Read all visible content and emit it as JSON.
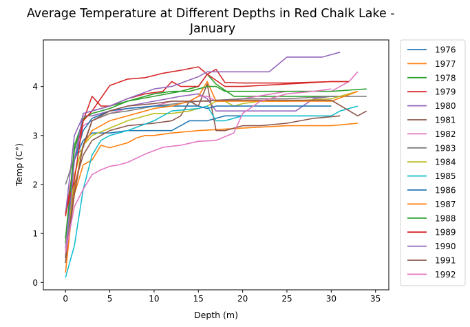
{
  "chart_data": {
    "type": "line",
    "title": "Average Temperature at Different Depths in Red Chalk Lake -\nJanuary",
    "xlabel": "Depth (m)",
    "ylabel": "Temp (C°)",
    "xlim": [
      -2.5,
      36.5
    ],
    "ylim": [
      -0.15,
      4.95
    ],
    "xticks": [
      0,
      5,
      10,
      15,
      20,
      25,
      30,
      35
    ],
    "yticks": [
      0,
      1,
      2,
      3,
      4
    ],
    "grid": false,
    "legend": "outside-right",
    "series": [
      {
        "name": "1976",
        "color": "#1f77b4",
        "x": [
          0,
          1,
          2,
          3,
          5,
          7,
          10,
          12,
          14,
          15,
          16,
          18,
          20,
          25,
          30
        ],
        "y": [
          0.7,
          2.5,
          2.9,
          3.05,
          3.05,
          3.1,
          3.1,
          3.1,
          3.3,
          3.3,
          3.3,
          3.4,
          3.4,
          3.4,
          3.4
        ]
      },
      {
        "name": "1977",
        "color": "#ff7f0e",
        "x": [
          0,
          1,
          2,
          3,
          4,
          5,
          6,
          7,
          8,
          9,
          10,
          12,
          15,
          20,
          25,
          30,
          33
        ],
        "y": [
          0.4,
          1.8,
          2.4,
          2.5,
          2.8,
          2.75,
          2.8,
          2.85,
          2.95,
          3.0,
          3.0,
          3.05,
          3.1,
          3.15,
          3.2,
          3.2,
          3.25
        ]
      },
      {
        "name": "1978",
        "color": "#2ca02c",
        "x": [
          0,
          1,
          2,
          3,
          5,
          7,
          10,
          13,
          15,
          16,
          17,
          19,
          22,
          25,
          28,
          31
        ],
        "y": [
          0.8,
          2.8,
          3.3,
          3.5,
          3.6,
          3.7,
          3.8,
          3.9,
          4.0,
          4.25,
          4.05,
          3.8,
          3.8,
          3.8,
          3.8,
          3.8
        ]
      },
      {
        "name": "1979",
        "color": "#d62728",
        "x": [
          0,
          1,
          2,
          3,
          4,
          5,
          7,
          9,
          11,
          12,
          13,
          15,
          16,
          18,
          20,
          25,
          30,
          32
        ],
        "y": [
          1.35,
          2.5,
          3.3,
          3.8,
          3.6,
          3.6,
          3.75,
          3.85,
          3.9,
          4.1,
          4.0,
          4.0,
          4.25,
          4.0,
          4.0,
          4.05,
          4.1,
          4.1
        ]
      },
      {
        "name": "1980",
        "color": "#9467bd",
        "x": [
          0,
          1,
          2,
          3,
          5,
          7,
          10,
          13,
          15,
          16,
          17,
          19,
          22,
          25,
          26,
          28,
          30,
          32
        ],
        "y": [
          1.4,
          3.0,
          3.4,
          3.4,
          3.5,
          3.6,
          3.7,
          3.8,
          3.85,
          3.75,
          3.5,
          3.5,
          3.5,
          3.5,
          3.5,
          3.75,
          3.8,
          3.8
        ]
      },
      {
        "name": "1981",
        "color": "#8c564b",
        "x": [
          0,
          1,
          2,
          3,
          5,
          7,
          10,
          12,
          13,
          14,
          15,
          16,
          17,
          18,
          20,
          22,
          25,
          28,
          31
        ],
        "y": [
          0.4,
          2.0,
          2.6,
          2.9,
          3.1,
          3.2,
          3.25,
          3.3,
          3.4,
          3.7,
          3.6,
          4.05,
          3.1,
          3.1,
          3.2,
          3.2,
          3.25,
          3.35,
          3.4
        ]
      },
      {
        "name": "1982",
        "color": "#e377c2",
        "x": [
          0,
          1,
          2,
          3,
          5,
          7,
          10,
          12,
          14,
          15,
          16,
          17,
          18,
          20,
          25,
          30,
          31,
          32,
          33
        ],
        "y": [
          0.65,
          2.5,
          3.2,
          3.3,
          3.45,
          3.55,
          3.6,
          3.7,
          3.7,
          3.8,
          3.8,
          3.7,
          3.7,
          3.75,
          3.9,
          3.9,
          4.0,
          4.1,
          4.3
        ]
      },
      {
        "name": "1983",
        "color": "#7f7f7f",
        "x": [
          0,
          1,
          2,
          3,
          5,
          7,
          10,
          15,
          20,
          25,
          30,
          34
        ],
        "y": [
          2.0,
          2.55,
          2.75,
          3.3,
          3.45,
          3.5,
          3.6,
          3.7,
          3.75,
          3.75,
          3.8,
          3.8
        ]
      },
      {
        "name": "1984",
        "color": "#bcbd22",
        "x": [
          0,
          1,
          2,
          3,
          5,
          7,
          10,
          12,
          14,
          15,
          16,
          17,
          18,
          19,
          20,
          22,
          25,
          30,
          33
        ],
        "y": [
          0.55,
          2.2,
          2.8,
          3.0,
          3.15,
          3.3,
          3.45,
          3.45,
          3.5,
          3.55,
          3.6,
          3.7,
          3.7,
          3.6,
          3.65,
          3.7,
          3.7,
          3.75,
          3.9
        ]
      },
      {
        "name": "1985",
        "color": "#17becf",
        "x": [
          0,
          1,
          2,
          3,
          4,
          5,
          7,
          10,
          12,
          15,
          16,
          17,
          18,
          20,
          25,
          30,
          31,
          33
        ],
        "y": [
          0.1,
          0.75,
          1.9,
          2.6,
          2.9,
          3.0,
          3.1,
          3.3,
          3.5,
          3.55,
          3.6,
          3.3,
          3.3,
          3.4,
          3.4,
          3.4,
          3.5,
          3.6
        ]
      },
      {
        "name": "1986",
        "color": "#1f77b4",
        "x": [
          0,
          1,
          2,
          3,
          5,
          7,
          10,
          12,
          14,
          15,
          16,
          17,
          18,
          20,
          25,
          30
        ],
        "y": [
          0.9,
          2.5,
          3.1,
          3.35,
          3.5,
          3.55,
          3.6,
          3.6,
          3.6,
          3.6,
          3.55,
          3.6,
          3.6,
          3.6,
          3.6,
          3.6
        ]
      },
      {
        "name": "1987",
        "color": "#ff7f0e",
        "x": [
          0,
          1,
          2,
          3,
          5,
          7,
          10,
          12,
          14,
          15,
          16,
          17,
          18,
          20,
          25,
          30,
          33
        ],
        "y": [
          0.2,
          1.9,
          2.8,
          3.1,
          3.3,
          3.4,
          3.55,
          3.6,
          3.7,
          3.8,
          4.1,
          3.7,
          3.7,
          3.7,
          3.7,
          3.7,
          3.9
        ]
      },
      {
        "name": "1988",
        "color": "#2ca02c",
        "x": [
          0,
          1,
          2,
          3,
          5,
          7,
          10,
          12,
          14,
          15,
          16,
          17,
          18,
          20,
          25,
          30,
          34
        ],
        "y": [
          0.9,
          2.7,
          3.35,
          3.45,
          3.55,
          3.7,
          3.85,
          3.9,
          3.9,
          3.95,
          4.0,
          4.0,
          3.9,
          3.9,
          3.9,
          3.9,
          3.95
        ]
      },
      {
        "name": "1989",
        "color": "#d62728",
        "x": [
          0,
          1,
          2,
          3,
          5,
          7,
          9,
          11,
          13,
          15,
          16,
          17,
          18,
          20,
          25,
          30,
          32
        ],
        "y": [
          1.4,
          2.1,
          3.3,
          3.5,
          4.02,
          4.15,
          4.18,
          4.27,
          4.33,
          4.4,
          4.25,
          4.35,
          4.08,
          4.07,
          4.07,
          4.1,
          4.1
        ]
      },
      {
        "name": "1990",
        "color": "#9467bd",
        "x": [
          0,
          1,
          2,
          3,
          5,
          7,
          10,
          12,
          15,
          16,
          17,
          19,
          20,
          23,
          25,
          29,
          31
        ],
        "y": [
          0.5,
          2.5,
          3.45,
          3.5,
          3.6,
          3.75,
          3.95,
          4.0,
          4.2,
          4.3,
          4.3,
          4.3,
          4.3,
          4.3,
          4.6,
          4.6,
          4.7
        ]
      },
      {
        "name": "1991",
        "color": "#8c564b",
        "x": [
          0,
          1,
          2,
          3,
          5,
          7,
          10,
          12,
          14,
          15,
          16,
          17,
          18,
          20,
          25,
          30,
          33,
          34
        ],
        "y": [
          0.5,
          1.8,
          2.8,
          3.3,
          3.5,
          3.6,
          3.65,
          3.7,
          3.7,
          3.7,
          3.7,
          3.72,
          3.72,
          3.72,
          3.72,
          3.72,
          3.4,
          3.5
        ]
      },
      {
        "name": "1992",
        "color": "#e377c2",
        "x": [
          0,
          1,
          2,
          3,
          4,
          5,
          6,
          7,
          9,
          11,
          13,
          15,
          17,
          19,
          20,
          22,
          25,
          28,
          30
        ],
        "y": [
          0.6,
          1.55,
          1.9,
          2.2,
          2.3,
          2.37,
          2.4,
          2.45,
          2.62,
          2.76,
          2.8,
          2.88,
          2.9,
          3.05,
          3.45,
          3.7,
          3.85,
          3.9,
          3.95
        ]
      }
    ]
  }
}
